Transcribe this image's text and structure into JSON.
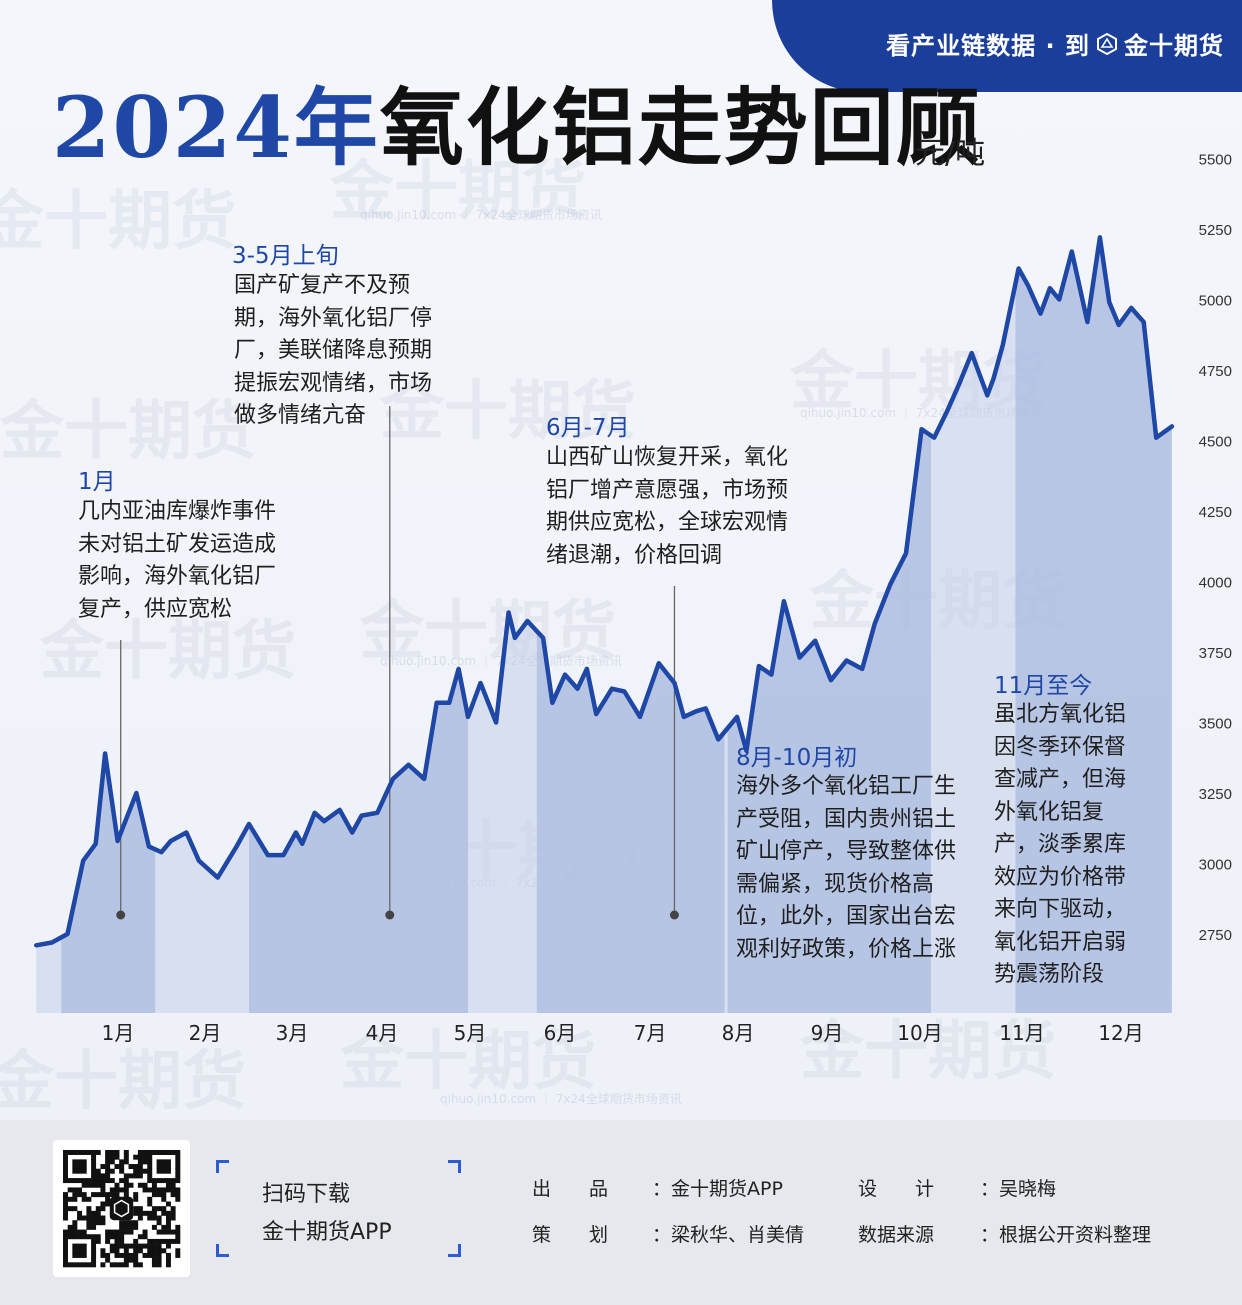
{
  "header": {
    "tag_text": "看产业链数据 · 到",
    "tag_brand": "金十期货",
    "title_year": "2024年",
    "title_main": "氧化铝走势回顾",
    "unit": "元/吨"
  },
  "watermark": {
    "brand": "金十期货",
    "url": "qihuo.jin10.com ｜ 7x24全球期货市场资讯"
  },
  "annotations": [
    {
      "head": "1月",
      "body": "几内亚油库爆炸事件\n未对铝土矿发运造成\n影响，海外氧化铝厂\n复产，供应宽松"
    },
    {
      "head": "3-5月上旬",
      "body": "国产矿复产不及预\n期，海外氧化铝厂停\n厂，美联储降息预期\n提振宏观情绪，市场\n做多情绪亢奋"
    },
    {
      "head": "6月-7月",
      "body": "山西矿山恢复开采，氧化\n铝厂增产意愿强，市场预\n期供应宽松，全球宏观情\n绪退潮，价格回调"
    },
    {
      "head": "8月-10月初",
      "body": "海外多个氧化铝工厂生\n产受阻，国内贵州铝土\n矿山停产，导致整体供\n需偏紧，现货价格高\n位，此外，国家出台宏\n观利好政策，价格上涨"
    },
    {
      "head": "11月至今",
      "body": "虽北方氧化铝\n因冬季环保督\n查减产，但海\n外氧化铝复\n产，淡季累库\n效应为价格带\n来向下驱动，\n氧化铝开启弱\n势震荡阶段"
    }
  ],
  "footer": {
    "qr_label": "扫码下载",
    "app_name": "金十期货APP",
    "credits": [
      {
        "label": "出　　品",
        "value": "：金十期货APP"
      },
      {
        "label": "设　　计",
        "value": "：吴晓梅"
      },
      {
        "label": "策　　划",
        "value": "：梁秋华、肖美倩"
      },
      {
        "label": "数据来源",
        "value": "：根据公开资料整理"
      }
    ]
  },
  "chart_data": {
    "type": "area",
    "title": "2024年氧化铝走势回顾",
    "ylabel": "元/吨",
    "xlabel": "",
    "ylim": [
      2470,
      5530
    ],
    "yticks": [
      2750,
      3000,
      3250,
      3500,
      3750,
      4000,
      4250,
      4500,
      4750,
      5000,
      5250,
      5500
    ],
    "xticks": [
      "1月",
      "2月",
      "3月",
      "4月",
      "5月",
      "6月",
      "7月",
      "8月",
      "9月",
      "10月",
      "11月",
      "12月"
    ],
    "grid": false,
    "line_color": "#1f47a6",
    "fill_color": "#c5d0ea",
    "highlight_color": "#a9b9e0",
    "series": [
      {
        "x": [
          "2023-12-24",
          "2023-12-29",
          "2024-01-03",
          "2024-01-08",
          "2024-01-12",
          "2024-01-15",
          "2024-01-19",
          "2024-01-25",
          "2024-01-29",
          "2024-02-02",
          "2024-02-05",
          "2024-02-10",
          "2024-02-14",
          "2024-02-20",
          "2024-02-26",
          "2024-03-01",
          "2024-03-07",
          "2024-03-12",
          "2024-03-16",
          "2024-03-18",
          "2024-03-22",
          "2024-03-25",
          "2024-03-30",
          "2024-04-03",
          "2024-04-06",
          "2024-04-11",
          "2024-04-16",
          "2024-04-21",
          "2024-04-26",
          "2024-04-30",
          "2024-05-04",
          "2024-05-07",
          "2024-05-10",
          "2024-05-14",
          "2024-05-19",
          "2024-05-23",
          "2024-05-25",
          "2024-05-29",
          "2024-06-03",
          "2024-06-06",
          "2024-06-10",
          "2024-06-14",
          "2024-06-17",
          "2024-06-20",
          "2024-06-25",
          "2024-06-29",
          "2024-07-04",
          "2024-07-10",
          "2024-07-15",
          "2024-07-18",
          "2024-07-22",
          "2024-07-25",
          "2024-07-29",
          "2024-08-04",
          "2024-08-07",
          "2024-08-11",
          "2024-08-15",
          "2024-08-19",
          "2024-08-24",
          "2024-08-29",
          "2024-09-03",
          "2024-09-08",
          "2024-09-13",
          "2024-09-17",
          "2024-09-22",
          "2024-09-27",
          "2024-10-02",
          "2024-10-06",
          "2024-10-10",
          "2024-10-14",
          "2024-10-18",
          "2024-10-23",
          "2024-10-25",
          "2024-10-28",
          "2024-11-02",
          "2024-11-05",
          "2024-11-09",
          "2024-11-12",
          "2024-11-15",
          "2024-11-19",
          "2024-11-24",
          "2024-11-28",
          "2024-12-01",
          "2024-12-04",
          "2024-12-08",
          "2024-12-12",
          "2024-12-16",
          "2024-12-21"
        ],
        "values": [
          2710,
          2720,
          2750,
          3010,
          3070,
          3390,
          3080,
          3250,
          3060,
          3040,
          3080,
          3110,
          3010,
          2950,
          3060,
          3140,
          3030,
          3030,
          3110,
          3070,
          3180,
          3150,
          3190,
          3110,
          3170,
          3180,
          3300,
          3350,
          3300,
          3570,
          3570,
          3690,
          3520,
          3640,
          3500,
          3890,
          3800,
          3860,
          3800,
          3570,
          3670,
          3620,
          3690,
          3530,
          3620,
          3610,
          3520,
          3710,
          3640,
          3520,
          3540,
          3550,
          3440,
          3520,
          3400,
          3700,
          3670,
          3930,
          3730,
          3790,
          3650,
          3720,
          3690,
          3850,
          3990,
          4100,
          4540,
          4510,
          4600,
          4700,
          4810,
          4660,
          4720,
          4840,
          5110,
          5050,
          4950,
          5040,
          5000,
          5170,
          4920,
          5220,
          4990,
          4910,
          4970,
          4920,
          4510,
          4550
        ]
      }
    ],
    "highlight_ranges": [
      [
        "2024-01-01",
        "2024-01-31"
      ],
      [
        "2024-03-01",
        "2024-05-10"
      ],
      [
        "2024-06-01",
        "2024-07-31"
      ],
      [
        "2024-08-01",
        "2024-10-05"
      ],
      [
        "2024-11-01",
        "2024-12-21"
      ]
    ],
    "marker_dates": [
      "2024-01-20",
      "2024-04-15",
      "2024-07-15"
    ]
  }
}
